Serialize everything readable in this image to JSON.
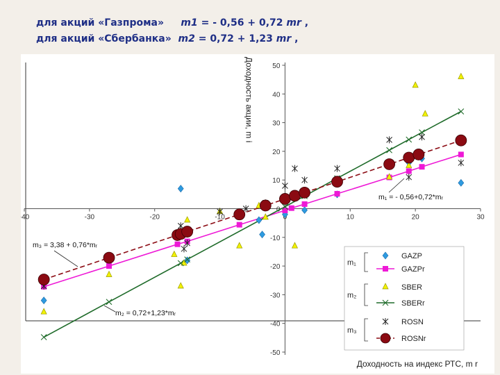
{
  "header": {
    "line1": {
      "prefix": "для акций «Газпрома»",
      "var": "m1",
      "eq": " = - 0,56 + 0,72 ",
      "mr": "mr",
      "tail": " ,"
    },
    "line2": {
      "prefix": "для акций «Сбербанка»",
      "var": "m2",
      "eq": " = 0,72 + 1,23 ",
      "mr": "mr",
      "tail": " ,"
    }
  },
  "chart_data": {
    "type": "scatter",
    "title": "",
    "xlabel": "Доходность на индекс РТС, m r",
    "ylabel": "Доходность акции, m i",
    "xlim": [
      -40,
      30
    ],
    "ylim": [
      -50,
      50
    ],
    "xticks": [
      -40,
      -30,
      -20,
      -10,
      0,
      10,
      20,
      30
    ],
    "yticks": [
      50,
      40,
      30,
      20,
      10,
      0,
      -10,
      -20,
      -30,
      -40,
      -50
    ],
    "xtick_labels": [
      "-40",
      "-30",
      "-20",
      "-10",
      "0",
      "10",
      "20",
      "30"
    ],
    "ytick_labels": [
      "50",
      "40",
      "30",
      "20",
      "10",
      "0",
      "-10",
      "-20",
      "-30",
      "-40",
      "-50"
    ],
    "series": [
      {
        "name": "GAZP",
        "kind": "points",
        "marker": "diamond",
        "color": "#2e9be0",
        "x": [
          -37,
          -16,
          -15,
          -4,
          -3.5,
          0,
          3,
          8,
          19,
          21,
          27
        ],
        "y": [
          -32,
          7,
          -18,
          -4,
          -9,
          -2,
          -0.5,
          5,
          16,
          17.5,
          9
        ]
      },
      {
        "name": "GAZPr",
        "kind": "line",
        "marker": "square",
        "color": "#ee19d6",
        "x": [
          -37,
          -27,
          -16.5,
          -15,
          -7,
          0,
          1,
          3,
          8,
          16,
          19,
          21,
          27
        ],
        "y": [
          -27.2,
          -20,
          -12.4,
          -11.4,
          -5.6,
          -0.6,
          0.2,
          1.6,
          5.2,
          10.9,
          13.1,
          14.6,
          18.9
        ]
      },
      {
        "name": "SBER",
        "kind": "points",
        "marker": "triangle",
        "color": "#f2f200",
        "x": [
          -37,
          -27,
          -17,
          -16,
          -15,
          -15.5,
          -10,
          -7,
          -4,
          -3,
          1.5,
          16,
          19,
          20,
          21.5,
          27
        ],
        "y": [
          -36,
          -23,
          -16,
          -27,
          -4,
          -19,
          -1,
          -13,
          1,
          -3,
          -13,
          11,
          15,
          43,
          33,
          46
        ]
      },
      {
        "name": "SBERr",
        "kind": "line",
        "marker": "x",
        "color": "#1f6b2a",
        "x": [
          -37,
          -27,
          -16,
          -15,
          0,
          3,
          8,
          16,
          19,
          21,
          27
        ],
        "y": [
          -44.8,
          -32.5,
          -19,
          -17.7,
          0.7,
          4.4,
          10.6,
          20.4,
          24.1,
          26.6,
          33.9
        ]
      },
      {
        "name": "ROSN",
        "kind": "points",
        "marker": "star",
        "color": "#222222",
        "x": [
          -37,
          -16,
          -15.5,
          -15,
          -10,
          -6,
          -3,
          0,
          1.5,
          3,
          8,
          16,
          19,
          21,
          27
        ],
        "y": [
          -27,
          -6,
          -14,
          -12,
          -1,
          0,
          2,
          8,
          14,
          10,
          14,
          24,
          11,
          25,
          16
        ]
      },
      {
        "name": "ROSNr",
        "kind": "line",
        "marker": "circle",
        "color": "#8b0a12",
        "x": [
          -37,
          -27,
          -16.5,
          -16,
          -15,
          -7,
          -3,
          0,
          1.5,
          3,
          8,
          16,
          19,
          20.5,
          27
        ],
        "y": [
          -24.7,
          -17.1,
          -9.2,
          -8.8,
          -8,
          -2,
          1.1,
          3.4,
          4.5,
          5.6,
          9.4,
          15.5,
          17.8,
          18.9,
          23.8
        ]
      }
    ],
    "annotations": [
      {
        "text": "m₁ = - 0,56+0,72*mᵣ"
      },
      {
        "text": "m₃ = 3,38 + 0,76*mᵣ"
      },
      {
        "text": "m₂ = 0,72+1,23*mᵣ"
      }
    ],
    "legend": {
      "position": "bottom-right",
      "items": [
        "GAZP",
        "GAZPr",
        "SBER",
        "SBERr",
        "ROSN",
        "ROSNr"
      ],
      "group_labels": [
        "m₁",
        "m₂",
        "m₃"
      ]
    }
  }
}
